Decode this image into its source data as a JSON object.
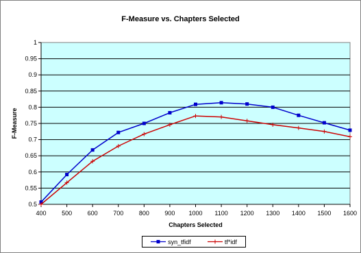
{
  "chart_data": {
    "type": "line",
    "title": "F-Measure vs. Chapters Selected",
    "xlabel": "Chapters Selected",
    "ylabel": "F-Measure",
    "x": [
      400,
      500,
      600,
      700,
      800,
      900,
      1000,
      1100,
      1200,
      1300,
      1400,
      1500,
      1600
    ],
    "xlim": [
      400,
      1600
    ],
    "ylim": [
      0.5,
      1
    ],
    "x_ticks": [
      "400",
      "500",
      "600",
      "700",
      "800",
      "900",
      "1000",
      "1100",
      "1200",
      "1300",
      "1400",
      "1500",
      "1600"
    ],
    "y_ticks": [
      "0.5",
      "0.55",
      "0.6",
      "0.65",
      "0.7",
      "0.75",
      "0.8",
      "0.85",
      "0.9",
      "0.95",
      "1"
    ],
    "grid": true,
    "plot_background": "#ccffff",
    "legend_position": "bottom",
    "series": [
      {
        "name": "syn_tfidf",
        "color": "#0000cc",
        "marker": "square",
        "values": [
          0.507,
          0.592,
          0.668,
          0.722,
          0.75,
          0.783,
          0.809,
          0.814,
          0.81,
          0.8,
          0.775,
          0.752,
          0.729
        ]
      },
      {
        "name": "tf*idf",
        "color": "#cc0000",
        "marker": "plus",
        "values": [
          0.5,
          0.567,
          0.633,
          0.68,
          0.717,
          0.746,
          0.773,
          0.77,
          0.758,
          0.746,
          0.736,
          0.725,
          0.709
        ]
      }
    ]
  }
}
